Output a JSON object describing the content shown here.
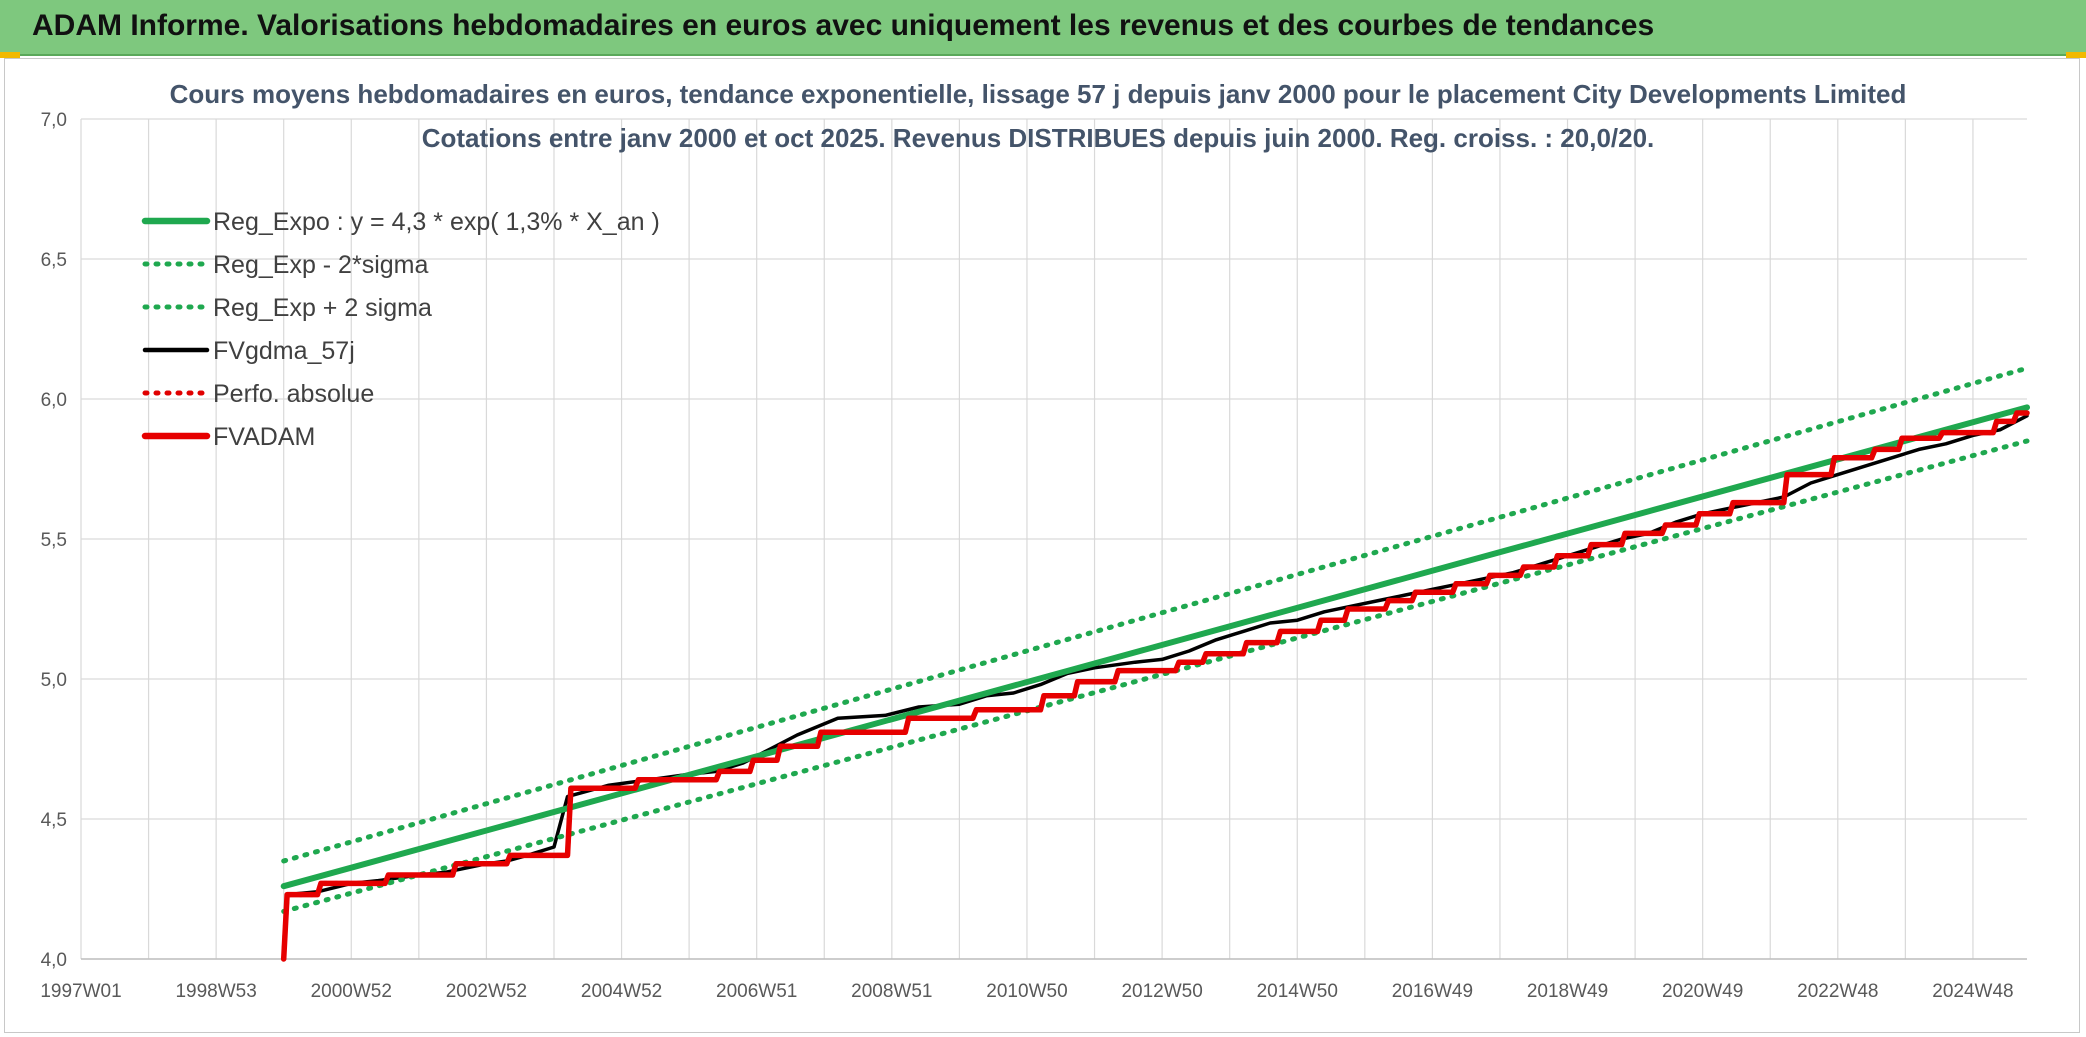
{
  "banner": {
    "title": "ADAM Informe. Valorisations hebdomadaires en euros avec uniquement les revenus et des courbes de tendances"
  },
  "colors": {
    "banner": "#7ec87e",
    "accent": "#f2b900",
    "reg_expo": "#1fa84f",
    "sigma": "#1fa84f",
    "fvgdma": "#000000",
    "perfo": "#e00000",
    "fvadam": "#e60000",
    "grid": "#d9d9d9"
  },
  "chart_data": {
    "type": "line",
    "title": "Cours moyens hebdomadaires en euros, tendance exponentielle, lissage 57 j depuis janv 2000 pour le placement City Developments Limited",
    "subtitle": "Cotations entre janv 2000 et oct 2025. Revenus DISTRIBUES depuis juin 2000. Reg. croiss. : 20,0/20.",
    "xlabel": "",
    "ylabel": "",
    "x_range": [
      1997.0,
      2025.8
    ],
    "ylim": [
      4.0,
      7.0
    ],
    "y_ticks": [
      "4,0",
      "4,5",
      "5,0",
      "5,5",
      "6,0",
      "6,5",
      "7,0"
    ],
    "y_tick_values": [
      4.0,
      4.5,
      5.0,
      5.5,
      6.0,
      6.5,
      7.0
    ],
    "x_ticks": [
      {
        "label": "1997W01",
        "x": 1997.0
      },
      {
        "label": "1998W53",
        "x": 1999.0
      },
      {
        "label": "2000W52",
        "x": 2001.0
      },
      {
        "label": "2002W52",
        "x": 2003.0
      },
      {
        "label": "2004W52",
        "x": 2005.0
      },
      {
        "label": "2006W51",
        "x": 2007.0
      },
      {
        "label": "2008W51",
        "x": 2009.0
      },
      {
        "label": "2010W50",
        "x": 2011.0
      },
      {
        "label": "2012W50",
        "x": 2013.0
      },
      {
        "label": "2014W50",
        "x": 2015.0
      },
      {
        "label": "2016W49",
        "x": 2017.0
      },
      {
        "label": "2018W49",
        "x": 2019.0
      },
      {
        "label": "2020W49",
        "x": 2021.0
      },
      {
        "label": "2022W48",
        "x": 2023.0
      },
      {
        "label": "2024W48",
        "x": 2025.0
      }
    ],
    "grid": true,
    "legend_position": "top-left",
    "series": [
      {
        "name": "Reg_Expo : y = 4,3 * exp( 1,3% *  X_an )",
        "style": "solid-thick",
        "color": "#1fa84f",
        "x": [
          2000.0,
          2025.8
        ],
        "y": [
          4.26,
          5.97
        ]
      },
      {
        "name": "Reg_Exp - 2*sigma",
        "style": "dotted",
        "color": "#1fa84f",
        "x": [
          2000.0,
          2025.8
        ],
        "y": [
          4.17,
          5.85
        ]
      },
      {
        "name": "Reg_Exp + 2 sigma",
        "style": "dotted",
        "color": "#1fa84f",
        "x": [
          2000.0,
          2025.8
        ],
        "y": [
          4.35,
          6.11
        ]
      },
      {
        "name": "FVgdma_57j",
        "style": "solid",
        "color": "#000000",
        "x": [
          2000.0,
          2000.05,
          2000.5,
          2001.0,
          2001.4,
          2002.0,
          2002.4,
          2003.0,
          2003.3,
          2003.6,
          2004.0,
          2004.2,
          2004.8,
          2005.4,
          2006.0,
          2006.4,
          2006.8,
          2007.2,
          2007.6,
          2008.2,
          2008.9,
          2009.4,
          2010.0,
          2010.4,
          2010.8,
          2011.2,
          2011.6,
          2012.0,
          2012.6,
          2013.0,
          2013.4,
          2013.8,
          2014.2,
          2014.6,
          2015.0,
          2015.4,
          2015.8,
          2016.2,
          2016.6,
          2017.0,
          2017.4,
          2017.8,
          2018.2,
          2018.6,
          2019.0,
          2019.4,
          2019.8,
          2020.2,
          2020.6,
          2021.0,
          2021.4,
          2021.8,
          2022.2,
          2022.6,
          2023.0,
          2023.4,
          2023.8,
          2024.2,
          2024.6,
          2025.0,
          2025.4,
          2025.8
        ],
        "y": [
          4.0,
          4.23,
          4.24,
          4.27,
          4.28,
          4.3,
          4.31,
          4.34,
          4.35,
          4.37,
          4.4,
          4.58,
          4.62,
          4.64,
          4.66,
          4.67,
          4.7,
          4.75,
          4.8,
          4.86,
          4.87,
          4.9,
          4.91,
          4.94,
          4.95,
          4.98,
          5.02,
          5.04,
          5.06,
          5.07,
          5.1,
          5.14,
          5.17,
          5.2,
          5.21,
          5.24,
          5.26,
          5.28,
          5.3,
          5.32,
          5.34,
          5.36,
          5.38,
          5.41,
          5.44,
          5.47,
          5.5,
          5.52,
          5.56,
          5.59,
          5.61,
          5.63,
          5.65,
          5.7,
          5.73,
          5.76,
          5.79,
          5.82,
          5.84,
          5.87,
          5.89,
          5.94
        ]
      },
      {
        "name": "Perfo. absolue",
        "style": "dotted",
        "color": "#e00000",
        "x": [
          2000.0,
          2000.05,
          2000.5,
          2000.55,
          2001.5,
          2001.55,
          2002.5,
          2002.55,
          2003.3,
          2003.35,
          2004.2,
          2004.25,
          2005.2,
          2005.25,
          2006.4,
          2006.45,
          2006.9,
          2006.95,
          2007.3,
          2007.35,
          2007.9,
          2007.95,
          2009.2,
          2009.25,
          2010.2,
          2010.25,
          2011.2,
          2011.25,
          2011.7,
          2011.75,
          2012.3,
          2012.35,
          2013.2,
          2013.25,
          2013.6,
          2013.65,
          2014.2,
          2014.25,
          2014.7,
          2014.75,
          2015.3,
          2015.35,
          2015.7,
          2015.75,
          2016.3,
          2016.35,
          2016.7,
          2016.75,
          2017.3,
          2017.35,
          2017.8,
          2017.85,
          2018.3,
          2018.35,
          2018.8,
          2018.85,
          2019.3,
          2019.35,
          2019.8,
          2019.85,
          2020.4,
          2020.45,
          2020.9,
          2020.95,
          2021.4,
          2021.45,
          2022.2,
          2022.25,
          2022.9,
          2022.95,
          2023.5,
          2023.55,
          2023.9,
          2023.95,
          2024.5,
          2024.55,
          2025.3,
          2025.35,
          2025.6,
          2025.65,
          2025.8
        ],
        "y": [
          4.0,
          4.23,
          4.23,
          4.27,
          4.27,
          4.3,
          4.3,
          4.34,
          4.34,
          4.37,
          4.37,
          4.61,
          4.61,
          4.64,
          4.64,
          4.67,
          4.67,
          4.71,
          4.71,
          4.76,
          4.76,
          4.81,
          4.81,
          4.86,
          4.86,
          4.89,
          4.89,
          4.94,
          4.94,
          4.99,
          4.99,
          5.03,
          5.03,
          5.06,
          5.06,
          5.09,
          5.09,
          5.13,
          5.13,
          5.17,
          5.17,
          5.21,
          5.21,
          5.25,
          5.25,
          5.28,
          5.28,
          5.31,
          5.31,
          5.34,
          5.34,
          5.37,
          5.37,
          5.4,
          5.4,
          5.44,
          5.44,
          5.48,
          5.48,
          5.52,
          5.52,
          5.55,
          5.55,
          5.59,
          5.59,
          5.63,
          5.63,
          5.73,
          5.73,
          5.79,
          5.79,
          5.82,
          5.82,
          5.86,
          5.86,
          5.88,
          5.88,
          5.92,
          5.92,
          5.95,
          5.95
        ]
      },
      {
        "name": "FVADAM",
        "style": "solid-thick",
        "color": "#e60000",
        "x": [
          2000.0,
          2000.05,
          2000.5,
          2000.55,
          2001.5,
          2001.55,
          2002.5,
          2002.55,
          2003.3,
          2003.35,
          2004.2,
          2004.25,
          2005.2,
          2005.25,
          2006.4,
          2006.45,
          2006.9,
          2006.95,
          2007.3,
          2007.35,
          2007.9,
          2007.95,
          2009.2,
          2009.25,
          2010.2,
          2010.25,
          2011.2,
          2011.25,
          2011.7,
          2011.75,
          2012.3,
          2012.35,
          2013.2,
          2013.25,
          2013.6,
          2013.65,
          2014.2,
          2014.25,
          2014.7,
          2014.75,
          2015.3,
          2015.35,
          2015.7,
          2015.75,
          2016.3,
          2016.35,
          2016.7,
          2016.75,
          2017.3,
          2017.35,
          2017.8,
          2017.85,
          2018.3,
          2018.35,
          2018.8,
          2018.85,
          2019.3,
          2019.35,
          2019.8,
          2019.85,
          2020.4,
          2020.45,
          2020.9,
          2020.95,
          2021.4,
          2021.45,
          2022.2,
          2022.25,
          2022.9,
          2022.95,
          2023.5,
          2023.55,
          2023.9,
          2023.95,
          2024.5,
          2024.55,
          2025.3,
          2025.35,
          2025.6,
          2025.65,
          2025.8
        ],
        "y": [
          4.0,
          4.23,
          4.23,
          4.27,
          4.27,
          4.3,
          4.3,
          4.34,
          4.34,
          4.37,
          4.37,
          4.61,
          4.61,
          4.64,
          4.64,
          4.67,
          4.67,
          4.71,
          4.71,
          4.76,
          4.76,
          4.81,
          4.81,
          4.86,
          4.86,
          4.89,
          4.89,
          4.94,
          4.94,
          4.99,
          4.99,
          5.03,
          5.03,
          5.06,
          5.06,
          5.09,
          5.09,
          5.13,
          5.13,
          5.17,
          5.17,
          5.21,
          5.21,
          5.25,
          5.25,
          5.28,
          5.28,
          5.31,
          5.31,
          5.34,
          5.34,
          5.37,
          5.37,
          5.4,
          5.4,
          5.44,
          5.44,
          5.48,
          5.48,
          5.52,
          5.52,
          5.55,
          5.55,
          5.59,
          5.59,
          5.63,
          5.63,
          5.73,
          5.73,
          5.79,
          5.79,
          5.82,
          5.82,
          5.86,
          5.86,
          5.88,
          5.88,
          5.92,
          5.92,
          5.95,
          5.95
        ]
      }
    ]
  }
}
